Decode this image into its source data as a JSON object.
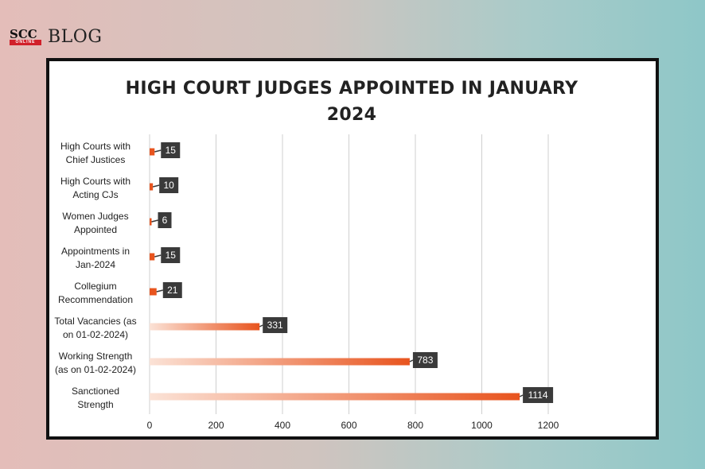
{
  "brand": {
    "mark": "SCC",
    "mark_sub": "ONLINE",
    "name": "BLOG"
  },
  "chart_data": {
    "type": "bar",
    "orientation": "horizontal",
    "title": "HIGH COURT JUDGES APPOINTED IN JANUARY 2024",
    "title_lines": [
      "HIGH COURT JUDGES APPOINTED IN JANUARY",
      "2024"
    ],
    "categories": [
      [
        "High Courts with",
        "Chief Justices"
      ],
      [
        "High Courts with",
        "Acting CJs"
      ],
      [
        "Women Judges",
        "Appointed"
      ],
      [
        "Appointments in",
        "Jan-2024"
      ],
      [
        "Collegium",
        "Recommendation"
      ],
      [
        "Total Vacancies (as",
        "on 01-02-2024)"
      ],
      [
        "Working Strength",
        "(as on 01-02-2024)"
      ],
      [
        "Sanctioned",
        "Strength"
      ]
    ],
    "values": [
      15,
      10,
      6,
      15,
      21,
      331,
      783,
      1114
    ],
    "data_labels": [
      "15",
      "10",
      "6",
      "15",
      "21",
      "331",
      "783",
      "1114"
    ],
    "xlim": [
      0,
      1200
    ],
    "x_ticks": [
      "0",
      "200",
      "400",
      "600",
      "800",
      "1000",
      "1200"
    ],
    "grid": "vertical",
    "legend": "none",
    "colors": {
      "bar": "#e8541e",
      "bar_fade": "#fbe2d6",
      "label_bg": "#3a3a3a",
      "grid": "#cfcfcf"
    }
  }
}
